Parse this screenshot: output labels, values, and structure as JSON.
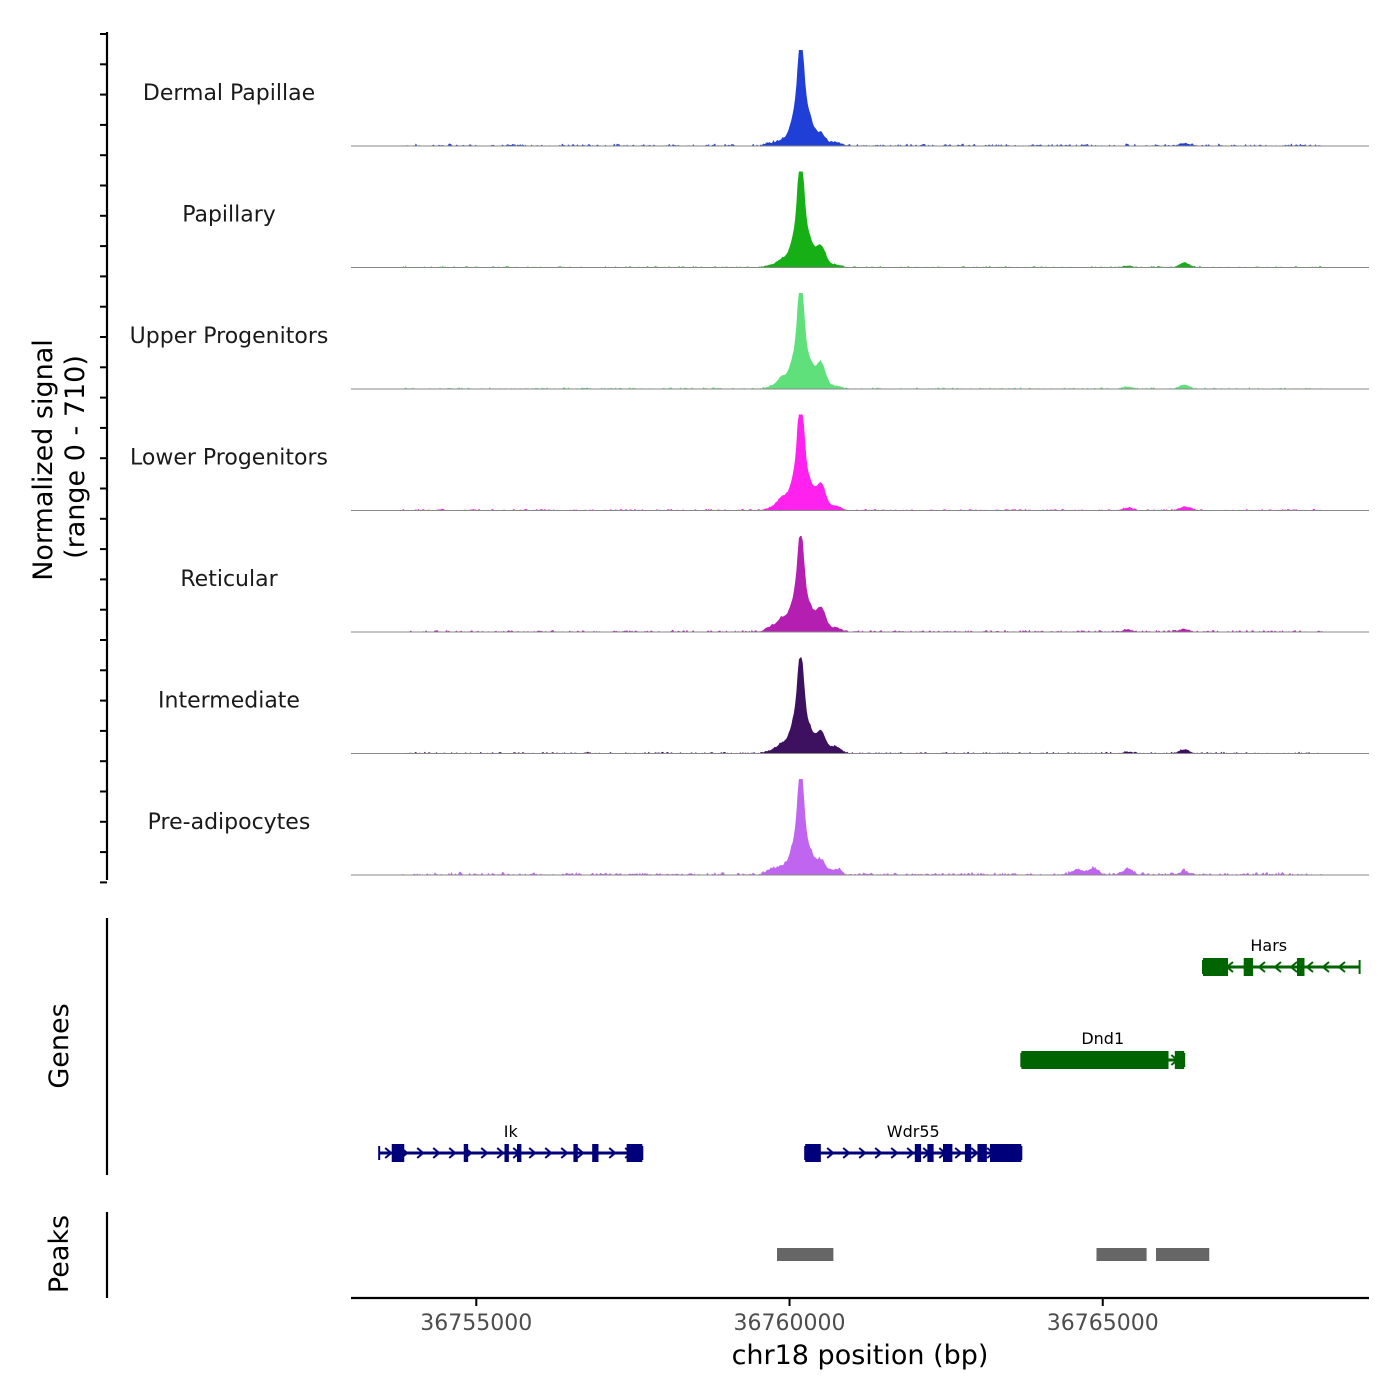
{
  "chart_data": {
    "type": "area",
    "title": "",
    "chromosome": "chr18",
    "xlabel": "chr18 position (bp)",
    "ylabel_line1": "Normalized signal",
    "ylabel_line2": "(range 0 - 710)",
    "xlim": [
      36753000,
      36769250
    ],
    "ylim": [
      0,
      710
    ],
    "x_ticks": [
      36755000,
      36760000,
      36765000
    ],
    "x_tick_labels": [
      "36755000",
      "36760000",
      "36765000"
    ],
    "tracks": [
      {
        "name": "Dermal Papillae",
        "color": "#1f3fd6",
        "peaks": [
          [
            36759700,
            18
          ],
          [
            36759880,
            40
          ],
          [
            36760080,
            220
          ],
          [
            36760180,
            640
          ],
          [
            36760290,
            250
          ],
          [
            36760500,
            90
          ],
          [
            36760740,
            25
          ],
          [
            36766300,
            18
          ]
        ],
        "noise": 7
      },
      {
        "name": "Papillary",
        "color": "#16b016",
        "peaks": [
          [
            36759700,
            15
          ],
          [
            36759880,
            60
          ],
          [
            36760080,
            220
          ],
          [
            36760180,
            690
          ],
          [
            36760290,
            240
          ],
          [
            36760500,
            160
          ],
          [
            36760740,
            20
          ],
          [
            36765400,
            10
          ],
          [
            36766300,
            35
          ]
        ],
        "noise": 4
      },
      {
        "name": "Upper Progenitors",
        "color": "#5fe07a",
        "peaks": [
          [
            36759700,
            15
          ],
          [
            36759880,
            85
          ],
          [
            36760080,
            230
          ],
          [
            36760180,
            660
          ],
          [
            36760290,
            230
          ],
          [
            36760500,
            195
          ],
          [
            36760740,
            20
          ],
          [
            36765400,
            15
          ],
          [
            36766300,
            30
          ]
        ],
        "noise": 5
      },
      {
        "name": "Lower Progenitors",
        "color": "#ff22ee",
        "peaks": [
          [
            36759700,
            18
          ],
          [
            36759880,
            95
          ],
          [
            36760080,
            240
          ],
          [
            36760180,
            700
          ],
          [
            36760290,
            240
          ],
          [
            36760500,
            200
          ],
          [
            36760740,
            35
          ],
          [
            36765400,
            18
          ],
          [
            36766300,
            25
          ]
        ],
        "noise": 5
      },
      {
        "name": "Reticular",
        "color": "#b41fb2",
        "peaks": [
          [
            36759700,
            35
          ],
          [
            36759880,
            100
          ],
          [
            36760080,
            240
          ],
          [
            36760180,
            590
          ],
          [
            36760290,
            210
          ],
          [
            36760500,
            180
          ],
          [
            36760740,
            30
          ],
          [
            36765400,
            15
          ],
          [
            36766300,
            20
          ]
        ],
        "noise": 6
      },
      {
        "name": "Intermediate",
        "color": "#3d1060",
        "peaks": [
          [
            36759700,
            20
          ],
          [
            36759880,
            70
          ],
          [
            36760080,
            240
          ],
          [
            36760180,
            590
          ],
          [
            36760290,
            210
          ],
          [
            36760500,
            165
          ],
          [
            36760740,
            50
          ],
          [
            36765400,
            10
          ],
          [
            36766300,
            28
          ]
        ],
        "noise": 5
      },
      {
        "name": "Pre-adipocytes",
        "color": "#c065f0",
        "peaks": [
          [
            36759700,
            40
          ],
          [
            36759880,
            60
          ],
          [
            36760080,
            230
          ],
          [
            36760180,
            640
          ],
          [
            36760290,
            210
          ],
          [
            36760500,
            110
          ],
          [
            36760740,
            40
          ],
          [
            36764600,
            40
          ],
          [
            36764850,
            50
          ],
          [
            36765400,
            40
          ],
          [
            36766300,
            22
          ]
        ],
        "noise": 9
      }
    ],
    "genes": [
      {
        "name": "Hars",
        "strand": "-",
        "color": "#006400",
        "start": 36766600,
        "end": 36769100,
        "exons": [
          [
            36766600,
            36767000
          ],
          [
            36767250,
            36767400
          ],
          [
            36768100,
            36768220
          ]
        ]
      },
      {
        "name": "Dnd1",
        "strand": "+",
        "color": "#006400",
        "start": 36763700,
        "end": 36766300,
        "exons": [
          [
            36763700,
            36766050
          ],
          [
            36766150,
            36766300
          ]
        ]
      },
      {
        "name": "Ik",
        "strand": "+",
        "color": "#00007a",
        "start": 36753450,
        "end": 36757650,
        "exons": [
          [
            36753650,
            36753850
          ],
          [
            36754800,
            36754870
          ],
          [
            36755450,
            36755520
          ],
          [
            36755650,
            36755720
          ],
          [
            36756550,
            36756620
          ],
          [
            36756850,
            36756950
          ],
          [
            36757400,
            36757650
          ]
        ]
      },
      {
        "name": "Wdr55",
        "strand": "+",
        "color": "#00007a",
        "start": 36760250,
        "end": 36763700,
        "exons": [
          [
            36760250,
            36760500
          ],
          [
            36762000,
            36762100
          ],
          [
            36762200,
            36762300
          ],
          [
            36762450,
            36762600
          ],
          [
            36762800,
            36762900
          ],
          [
            36763000,
            36763150
          ],
          [
            36763200,
            36763700
          ]
        ]
      }
    ],
    "genes_label": "Genes",
    "peak_regions": [
      [
        36759800,
        36760700
      ],
      [
        36764900,
        36765700
      ],
      [
        36765850,
        36766700
      ]
    ],
    "peaks_label": "Peaks",
    "colors": {
      "peak_box": "#666666",
      "baseline": "#888888",
      "axis": "#000000"
    }
  }
}
